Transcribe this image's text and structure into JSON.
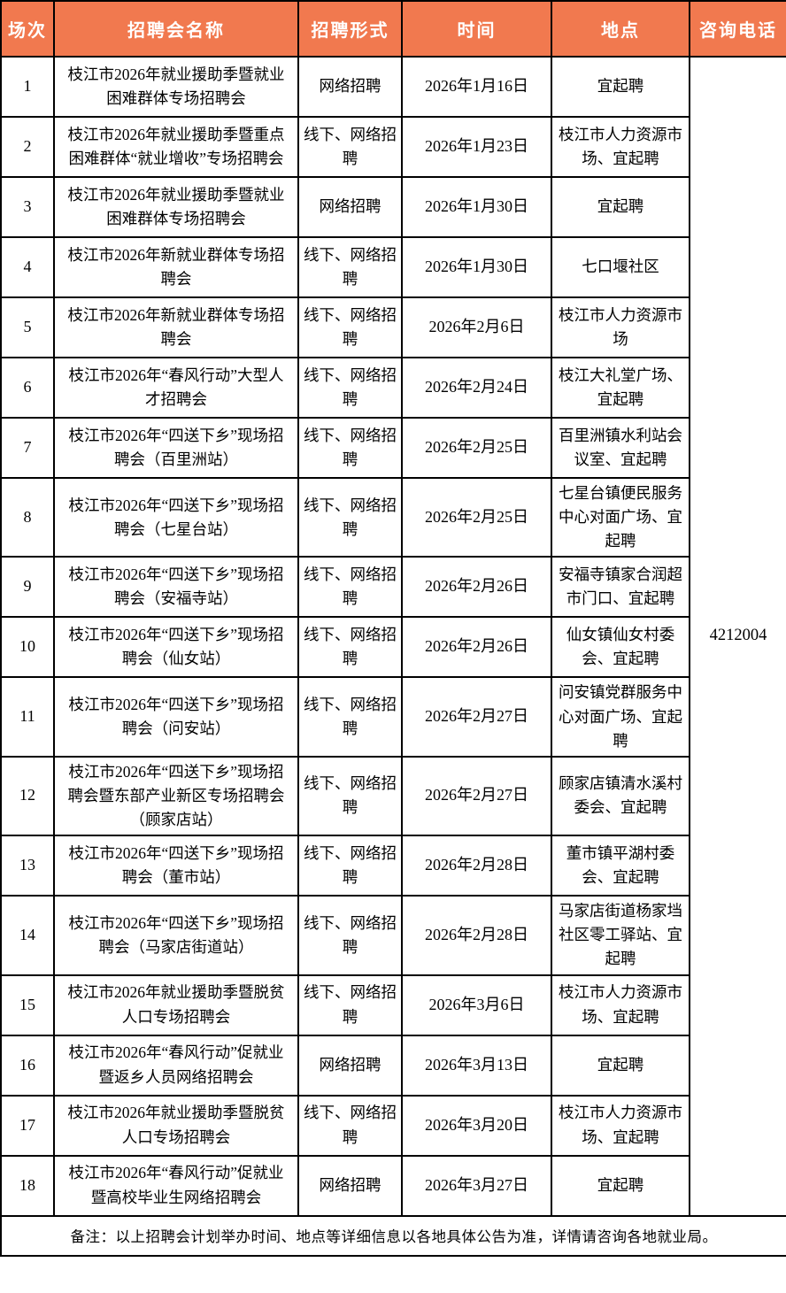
{
  "colors": {
    "header_bg": "#F1794F",
    "header_text": "#FFFFFF",
    "border": "#000000",
    "body_text": "#000000",
    "row_bg": "#FFFFFF"
  },
  "table": {
    "columns": [
      "场次",
      "招聘会名称",
      "招聘形式",
      "时间",
      "地点",
      "咨询电话"
    ],
    "phone": "4212004",
    "rows": [
      {
        "num": "1",
        "name": "枝江市2026年就业援助季暨就业困难群体专场招聘会",
        "form": "网络招聘",
        "date": "2026年1月16日",
        "location": "宜起聘"
      },
      {
        "num": "2",
        "name": "枝江市2026年就业援助季暨重点困难群体“就业增收”专场招聘会",
        "form": "线下、网络招聘",
        "date": "2026年1月23日",
        "location": "枝江市人力资源市场、宜起聘"
      },
      {
        "num": "3",
        "name": "枝江市2026年就业援助季暨就业困难群体专场招聘会",
        "form": "网络招聘",
        "date": "2026年1月30日",
        "location": "宜起聘"
      },
      {
        "num": "4",
        "name": "枝江市2026年新就业群体专场招聘会",
        "form": "线下、网络招聘",
        "date": "2026年1月30日",
        "location": "七口堰社区"
      },
      {
        "num": "5",
        "name": "枝江市2026年新就业群体专场招聘会",
        "form": "线下、网络招聘",
        "date": "2026年2月6日",
        "location": "枝江市人力资源市场"
      },
      {
        "num": "6",
        "name": "枝江市2026年“春风行动”大型人才招聘会",
        "form": "线下、网络招聘",
        "date": "2026年2月24日",
        "location": "枝江大礼堂广场、宜起聘"
      },
      {
        "num": "7",
        "name": "枝江市2026年“四送下乡”现场招聘会（百里洲站）",
        "form": "线下、网络招聘",
        "date": "2026年2月25日",
        "location": "百里洲镇水利站会议室、宜起聘"
      },
      {
        "num": "8",
        "name": "枝江市2026年“四送下乡”现场招聘会（七星台站）",
        "form": "线下、网络招聘",
        "date": "2026年2月25日",
        "location": "七星台镇便民服务中心对面广场、宜起聘"
      },
      {
        "num": "9",
        "name": "枝江市2026年“四送下乡”现场招聘会（安福寺站）",
        "form": "线下、网络招聘",
        "date": "2026年2月26日",
        "location": "安福寺镇家合润超市门口、宜起聘"
      },
      {
        "num": "10",
        "name": "枝江市2026年“四送下乡”现场招聘会（仙女站）",
        "form": "线下、网络招聘",
        "date": "2026年2月26日",
        "location": "仙女镇仙女村委会、宜起聘"
      },
      {
        "num": "11",
        "name": "枝江市2026年“四送下乡”现场招聘会（问安站）",
        "form": "线下、网络招聘",
        "date": "2026年2月27日",
        "location": "问安镇党群服务中心对面广场、宜起聘"
      },
      {
        "num": "12",
        "name": "枝江市2026年“四送下乡”现场招聘会暨东部产业新区专场招聘会（顾家店站）",
        "form": "线下、网络招聘",
        "date": "2026年2月27日",
        "location": "顾家店镇清水溪村委会、宜起聘"
      },
      {
        "num": "13",
        "name": "枝江市2026年“四送下乡”现场招聘会（董市站）",
        "form": "线下、网络招聘",
        "date": "2026年2月28日",
        "location": "董市镇平湖村委会、宜起聘"
      },
      {
        "num": "14",
        "name": "枝江市2026年“四送下乡”现场招聘会（马家店街道站）",
        "form": "线下、网络招聘",
        "date": "2026年2月28日",
        "location": "马家店街道杨家垱社区零工驿站、宜起聘"
      },
      {
        "num": "15",
        "name": "枝江市2026年就业援助季暨脱贫人口专场招聘会",
        "form": "线下、网络招聘",
        "date": "2026年3月6日",
        "location": "枝江市人力资源市场、宜起聘"
      },
      {
        "num": "16",
        "name": "枝江市2026年“春风行动”促就业暨返乡人员网络招聘会",
        "form": "网络招聘",
        "date": "2026年3月13日",
        "location": "宜起聘"
      },
      {
        "num": "17",
        "name": "枝江市2026年就业援助季暨脱贫人口专场招聘会",
        "form": "线下、网络招聘",
        "date": "2026年3月20日",
        "location": "枝江市人力资源市场、宜起聘"
      },
      {
        "num": "18",
        "name": "枝江市2026年“春风行动”促就业暨高校毕业生网络招聘会",
        "form": "网络招聘",
        "date": "2026年3月27日",
        "location": "宜起聘"
      }
    ],
    "note": "备注：以上招聘会计划举办时间、地点等详细信息以各地具体公告为准，详情请咨询各地就业局。"
  }
}
